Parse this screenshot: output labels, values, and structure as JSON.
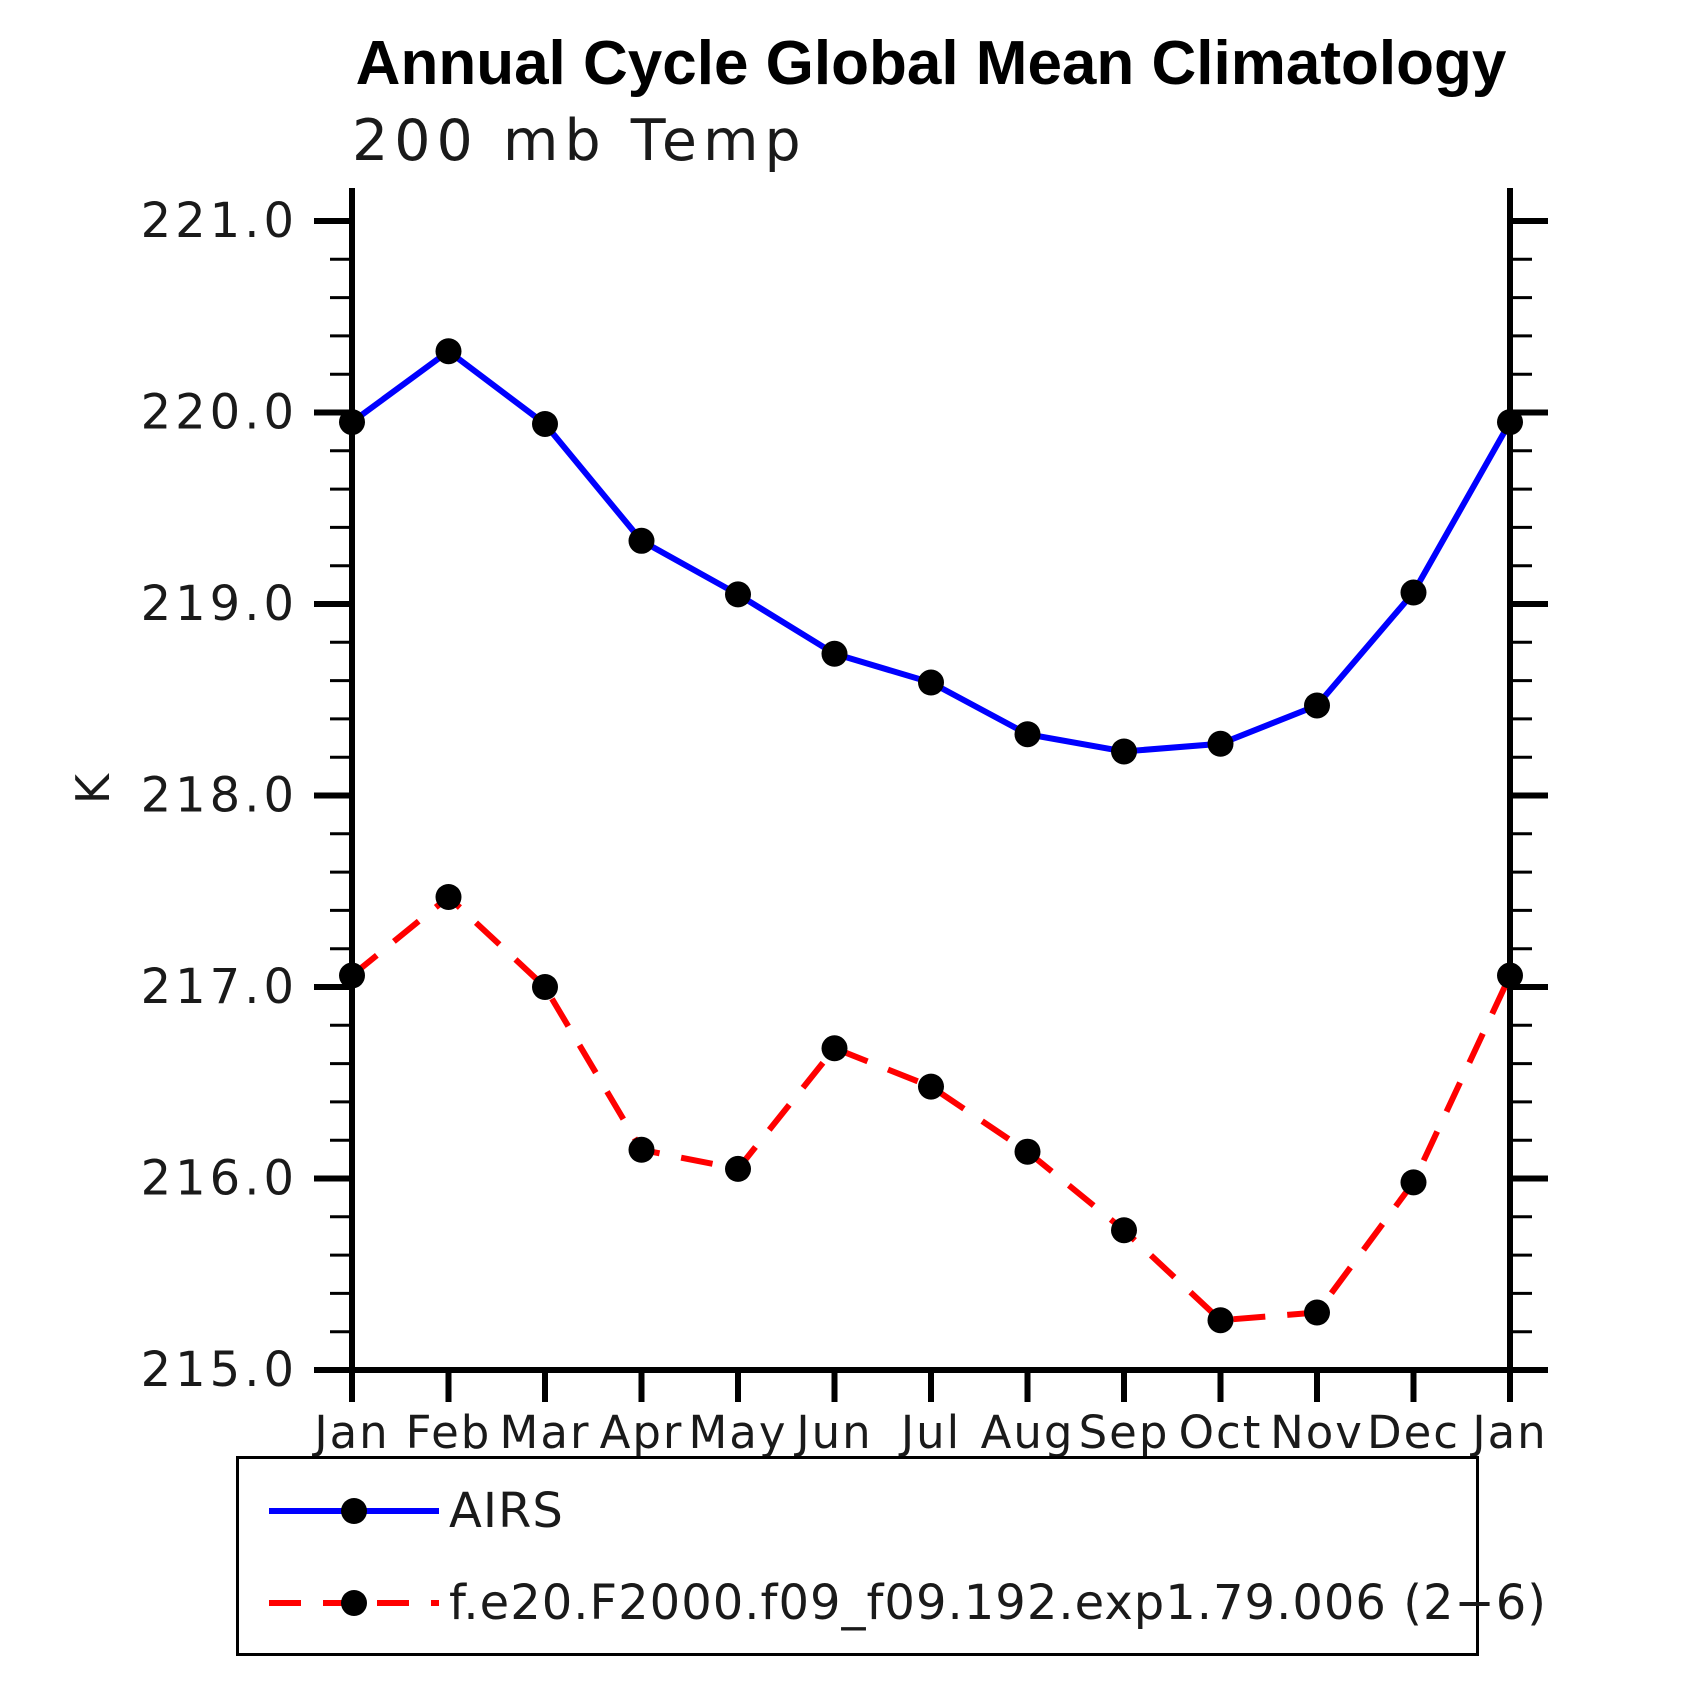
{
  "title": "Annual Cycle Global Mean Climatology",
  "subtitle": "200 mb Temp",
  "ylabel": "K",
  "legend": {
    "items": [
      {
        "label": "AIRS",
        "color": "#0000ff",
        "dash": "solid"
      },
      {
        "label": "f.e20.F2000.f09_f09.192.exp1.79.006 (2−6)",
        "color": "#ff0000",
        "dash": "dashed"
      }
    ]
  },
  "chart_data": {
    "type": "line",
    "categories": [
      "Jan",
      "Feb",
      "Mar",
      "Apr",
      "May",
      "Jun",
      "Jul",
      "Aug",
      "Sep",
      "Oct",
      "Nov",
      "Dec",
      "Jan"
    ],
    "series": [
      {
        "name": "AIRS",
        "color": "#0000ff",
        "dash": "solid",
        "marker": "circle",
        "values": [
          219.95,
          220.32,
          219.94,
          219.33,
          219.05,
          218.74,
          218.59,
          218.32,
          218.23,
          218.27,
          218.47,
          219.06,
          219.95
        ]
      },
      {
        "name": "f.e20.F2000.f09_f09.192.exp1.79.006 (2−6)",
        "color": "#ff0000",
        "dash": "dashed",
        "marker": "circle",
        "values": [
          217.06,
          217.47,
          217.0,
          216.15,
          216.05,
          216.68,
          216.48,
          216.14,
          215.73,
          215.26,
          215.3,
          215.98,
          217.06
        ]
      }
    ],
    "ylim": [
      215.0,
      221.0
    ],
    "ytick_major": 1.0,
    "ytick_minor": 0.2,
    "ytick_labels": [
      "215.0",
      "216.0",
      "217.0",
      "218.0",
      "219.0",
      "220.0",
      "221.0"
    ],
    "marker_color": "#000000",
    "grid": false,
    "legend_position": "bottom"
  }
}
